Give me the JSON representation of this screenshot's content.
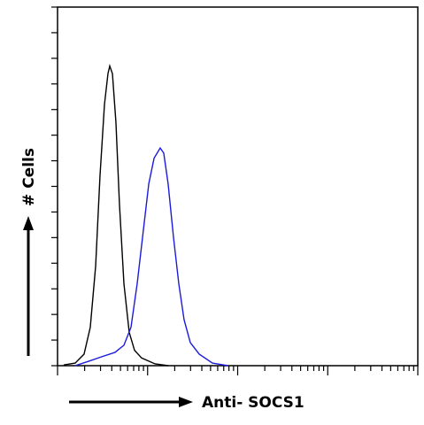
{
  "chart_data": {
    "type": "line",
    "xlabel": "Anti- SOCS1",
    "ylabel": "# Cells",
    "xscale": "log",
    "xlim": [
      1,
      10000
    ],
    "xticks": [
      1,
      2,
      3,
      4,
      5,
      6,
      7,
      8,
      9,
      10,
      20,
      30,
      40,
      50,
      60,
      70,
      80,
      90,
      100,
      200,
      300,
      400,
      500,
      600,
      700,
      800,
      900,
      1000,
      2000,
      3000,
      4000,
      5000,
      6000,
      7000,
      8000,
      9000,
      10000
    ],
    "ylim": [
      0,
      140
    ],
    "yticks": [
      0,
      10,
      20,
      30,
      40,
      50,
      60,
      70,
      80,
      90,
      100,
      110,
      120,
      130,
      140
    ],
    "series": [
      {
        "color": "#000000",
        "x": [
          1.17,
          1.57,
          1.97,
          2.31,
          2.65,
          2.96,
          3.32,
          3.63,
          3.8,
          4.07,
          4.45,
          4.87,
          5.46,
          6.25,
          7.16,
          8.58,
          12.1,
          16.9
        ],
        "values": [
          0.3,
          1,
          4.5,
          15,
          39,
          74,
          102,
          114,
          117,
          114,
          95,
          63,
          32,
          13,
          6,
          3,
          0.7,
          0
        ]
      },
      {
        "color": "#1a1adc",
        "x": [
          1.57,
          2.21,
          3.1,
          4.35,
          5.46,
          6.54,
          7.66,
          8.98,
          10.3,
          11.8,
          13.8,
          15.1,
          16.9,
          19.4,
          22.2,
          25.4,
          29.8,
          37.4,
          52.5,
          78.8
        ],
        "values": [
          0,
          1.7,
          3.5,
          5.2,
          8,
          15,
          32,
          53,
          71,
          81,
          85,
          83,
          71,
          50,
          32,
          18,
          9,
          4.5,
          1,
          0
        ]
      }
    ]
  }
}
